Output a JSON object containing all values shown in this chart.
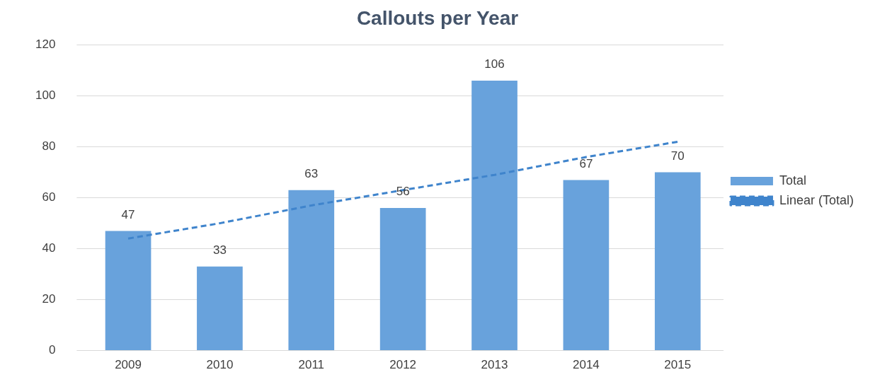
{
  "chart_data": {
    "type": "bar",
    "title": "Callouts per Year",
    "categories": [
      "2009",
      "2010",
      "2011",
      "2012",
      "2013",
      "2014",
      "2015"
    ],
    "series": [
      {
        "name": "Total",
        "color": "#68a2dc",
        "values": [
          47,
          33,
          63,
          56,
          106,
          67,
          70
        ],
        "value_labels": [
          "47",
          "33",
          "63",
          "56",
          "106",
          "67",
          "70"
        ]
      },
      {
        "name": "Linear (Total)",
        "type": "line",
        "color": "#3f84cc",
        "values": [
          44,
          50,
          57,
          63,
          69,
          76,
          82
        ],
        "line_style": "dashed",
        "marker": "none"
      }
    ],
    "ylim": [
      0,
      120
    ],
    "yticks": [
      0,
      20,
      40,
      60,
      80,
      100,
      120
    ],
    "grid": "y",
    "legend": "right"
  }
}
